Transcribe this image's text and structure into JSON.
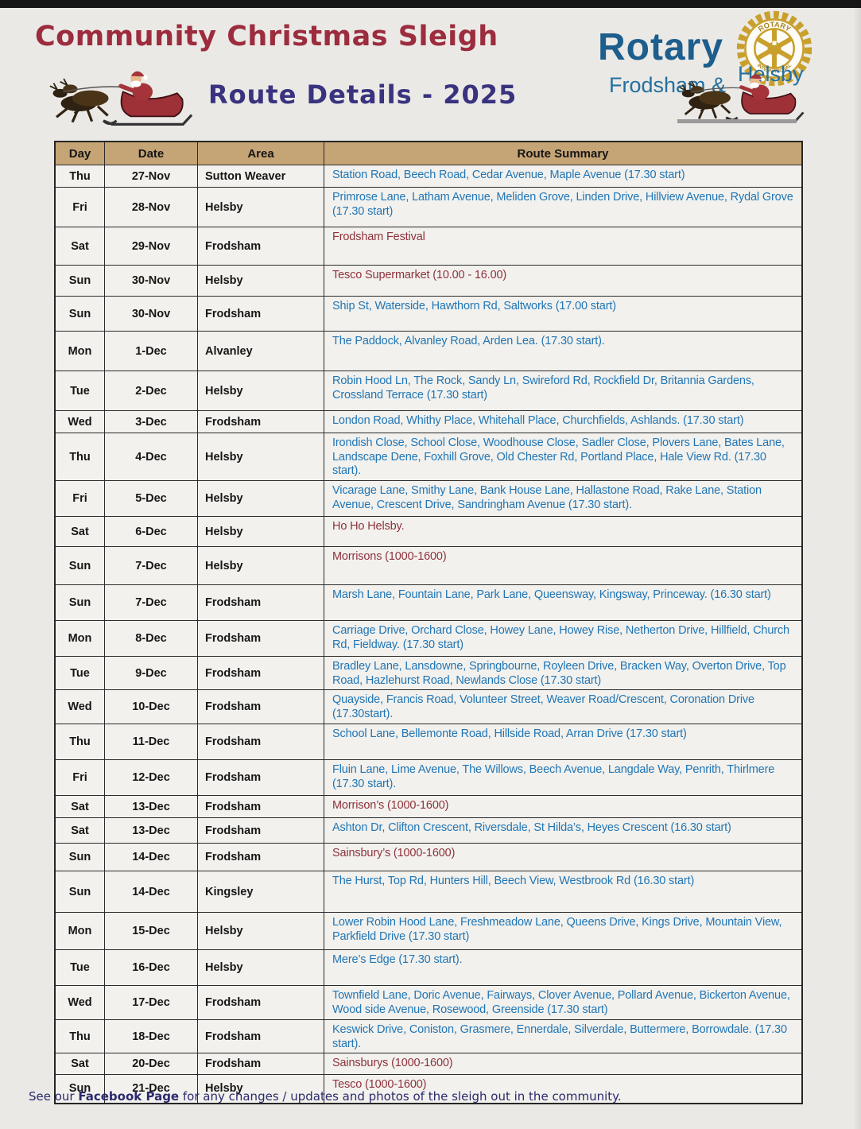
{
  "page": {
    "title": "Community Christmas Sleigh",
    "subtitle": "Route Details - 2025"
  },
  "logo": {
    "org": "Rotary",
    "club_line1": "Frodsham &",
    "club_line2": "Helsby",
    "wheel_top": "ROTARY",
    "wheel_bottom": "INTERNATIONAL"
  },
  "footer": {
    "prefix": "See our ",
    "link": "Facebook Page",
    "suffix": " for any changes / updates and photos of the sleigh out in the community."
  },
  "colors": {
    "title": "#9c2c3e",
    "subtitle": "#39337f",
    "rotary_blue": "#1d5e8c",
    "rotary_gold": "#c9a02c",
    "table_header_bg": "#c5a475",
    "route_text": "#2176b6",
    "event_text": "#8e323c",
    "footer_text": "#2b2a6e"
  },
  "icons": [
    "santa-sleigh-icon",
    "rotary-wheel-icon"
  ],
  "table": {
    "headers": [
      "Day",
      "Date",
      "Area",
      "Route Summary"
    ],
    "rows": [
      {
        "day": "Thu",
        "date": "27-Nov",
        "area": "Sutton Weaver",
        "route": "Station Road, Beech Road, Cedar Avenue, Maple Avenue (17.30 start)",
        "type": "route"
      },
      {
        "day": "Fri",
        "date": "28-Nov",
        "area": "Helsby",
        "route": "Primrose Lane, Latham Avenue, Meliden Grove, Linden Drive, Hillview Avenue, Rydal Grove (17.30 start)",
        "type": "route"
      },
      {
        "day": "Sat",
        "date": "29-Nov",
        "area": "Frodsham",
        "route": "Frodsham Festival",
        "type": "event"
      },
      {
        "day": "Sun",
        "date": "30-Nov",
        "area": "Helsby",
        "route": "Tesco Supermarket (10.00 - 16.00)",
        "type": "event"
      },
      {
        "day": "Sun",
        "date": "30-Nov",
        "area": "Frodsham",
        "route": "Ship St, Waterside, Hawthorn Rd, Saltworks (17.00 start)",
        "type": "route"
      },
      {
        "day": "Mon",
        "date": "1-Dec",
        "area": "Alvanley",
        "route": "The Paddock, Alvanley Road, Arden Lea. (17.30 start).",
        "type": "route"
      },
      {
        "day": "Tue",
        "date": "2-Dec",
        "area": "Helsby",
        "route": "Robin Hood Ln, The Rock, Sandy Ln, Swireford Rd, Rockfield Dr, Britannia Gardens, Crossland Terrace  (17.30 start)",
        "type": "route"
      },
      {
        "day": "Wed",
        "date": "3-Dec",
        "area": "Frodsham",
        "route": "London Road, Whithy Place, Whitehall Place, Churchfields, Ashlands.   (17.30 start)",
        "type": "route"
      },
      {
        "day": "Thu",
        "date": "4-Dec",
        "area": "Helsby",
        "route": "Irondish Close, School Close, Woodhouse Close, Sadler Close, Plovers Lane, Bates Lane, Landscape Dene, Foxhill Grove, Old Chester Rd, Portland Place, Hale View Rd. (17.30 start).",
        "type": "route"
      },
      {
        "day": "Fri",
        "date": "5-Dec",
        "area": "Helsby",
        "route": "Vicarage Lane, Smithy Lane, Bank House Lane, Hallastone Road, Rake Lane, Station Avenue, Crescent Drive, Sandringham Avenue (17.30 start).",
        "type": "route"
      },
      {
        "day": "Sat",
        "date": "6-Dec",
        "area": "Helsby",
        "route": "Ho Ho Helsby.",
        "type": "event"
      },
      {
        "day": "Sun",
        "date": "7-Dec",
        "area": "Helsby",
        "route": "Morrisons (1000-1600)",
        "type": "event"
      },
      {
        "day": "Sun",
        "date": "7-Dec",
        "area": "Frodsham",
        "route": "Marsh Lane, Fountain Lane, Park Lane, Queensway, Kingsway, Princeway.  (16.30 start)",
        "type": "route"
      },
      {
        "day": "Mon",
        "date": "8-Dec",
        "area": "Frodsham",
        "route": "Carriage Drive, Orchard Close, Howey Lane, Howey Rise, Netherton Drive, Hillfield, Church Rd, Fieldway. (17.30 start)",
        "type": "route"
      },
      {
        "day": "Tue",
        "date": "9-Dec",
        "area": "Frodsham",
        "route": "Bradley Lane, Lansdowne, Springbourne, Royleen Drive, Bracken Way, Overton Drive, Top Road, Hazlehurst Road, Newlands Close (17.30 start)",
        "type": "route"
      },
      {
        "day": "Wed",
        "date": "10-Dec",
        "area": "Frodsham",
        "route": "Quayside, Francis Road, Volunteer Street, Weaver Road/Crescent, Coronation Drive (17.30start).",
        "type": "route"
      },
      {
        "day": "Thu",
        "date": "11-Dec",
        "area": "Frodsham",
        "route": "School Lane, Bellemonte Road, Hillside Road, Arran Drive (17.30 start)",
        "type": "route"
      },
      {
        "day": "Fri",
        "date": "12-Dec",
        "area": "Frodsham",
        "route": "Fluin Lane, Lime Avenue, The Willows, Beech Avenue, Langdale Way, Penrith, Thirlmere (17.30 start).",
        "type": "route"
      },
      {
        "day": "Sat",
        "date": "13-Dec",
        "area": "Frodsham",
        "route": "Morrison’s (1000-1600)",
        "type": "event"
      },
      {
        "day": "Sat",
        "date": "13-Dec",
        "area": "Frodsham",
        "route": "Ashton Dr, Clifton Crescent, Riversdale, St Hilda’s, Heyes Crescent (16.30 start)",
        "type": "route"
      },
      {
        "day": "Sun",
        "date": "14-Dec",
        "area": "Frodsham",
        "route": "Sainsbury’s (1000-1600)",
        "type": "event"
      },
      {
        "day": "Sun",
        "date": "14-Dec",
        "area": "Kingsley",
        "route": "The Hurst, Top Rd, Hunters Hill, Beech View, Westbrook Rd (16.30 start)",
        "type": "route"
      },
      {
        "day": "Mon",
        "date": "15-Dec",
        "area": "Helsby",
        "route": "Lower Robin Hood Lane, Freshmeadow Lane, Queens Drive, Kings Drive, Mountain View, Parkfield Drive (17.30 start)",
        "type": "route"
      },
      {
        "day": "Tue",
        "date": "16-Dec",
        "area": "Helsby",
        "route": "Mere’s Edge (17.30 start).",
        "type": "route"
      },
      {
        "day": "Wed",
        "date": "17-Dec",
        "area": "Frodsham",
        "route": "Townfield Lane, Doric Avenue, Fairways, Clover Avenue, Pollard Avenue, Bickerton Avenue, Wood side Avenue, Rosewood, Greenside (17.30 start)",
        "type": "route"
      },
      {
        "day": "Thu",
        "date": "18-Dec",
        "area": "Frodsham",
        "route": "Keswick Drive, Coniston, Grasmere, Ennerdale, Silverdale, Buttermere, Borrowdale. (17.30 start).",
        "type": "route"
      },
      {
        "day": "Sat",
        "date": "20-Dec",
        "area": "Frodsham",
        "route": "Sainsburys (1000-1600)",
        "type": "event"
      },
      {
        "day": "Sun",
        "date": "21-Dec",
        "area": "Helsby",
        "route": "Tesco (1000-1600)",
        "type": "event"
      }
    ]
  }
}
